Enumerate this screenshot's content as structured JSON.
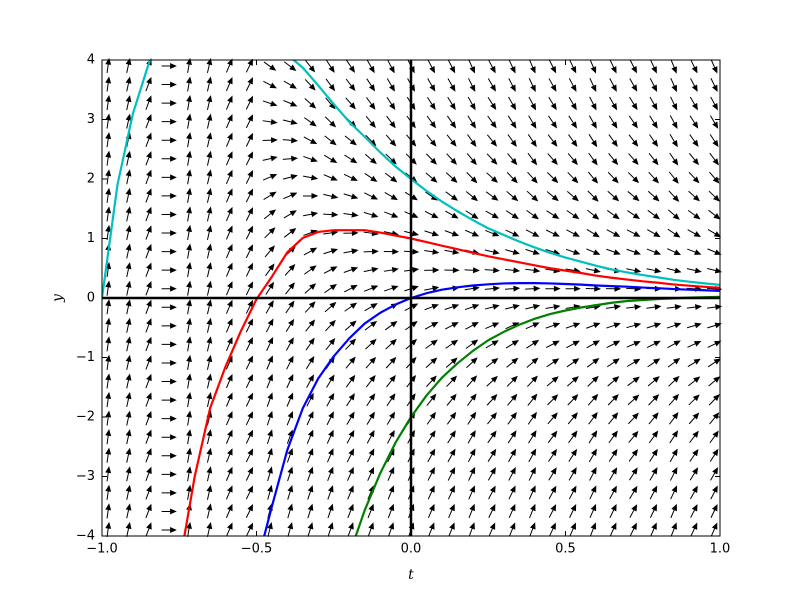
{
  "chart_data": {
    "type": "line",
    "xlabel": "t",
    "ylabel": "y",
    "x": [
      -1,
      -0.95,
      -0.9,
      -0.85,
      -0.8,
      -0.75,
      -0.7,
      -0.65,
      -0.6,
      -0.55,
      -0.5,
      -0.45,
      -0.4,
      -0.35,
      -0.3,
      -0.25,
      -0.2,
      -0.15,
      -0.1,
      -0.05,
      0,
      0.05,
      0.1,
      0.15,
      0.2,
      0.25,
      0.3,
      0.35,
      0.4,
      0.45,
      0.5,
      0.55,
      0.6,
      0.65,
      0.7,
      0.75,
      0.8,
      0.85,
      0.9,
      0.95,
      1
    ],
    "series": [
      {
        "color": "#00bfbf",
        "values": [
          0,
          1.9,
          3.1,
          3.92,
          4.6,
          null,
          null,
          null,
          null,
          null,
          null,
          4.5,
          4.09,
          3.87,
          3.57,
          3.26,
          2.96,
          2.71,
          2.45,
          2.21,
          2,
          1.8,
          1.62,
          1.46,
          1.31,
          1.17,
          1.06,
          0.95,
          0.85,
          0.76,
          0.68,
          0.61,
          0.54,
          0.48,
          0.43,
          0.385,
          0.347,
          0.306,
          0.274,
          0.246,
          0.22
        ]
      },
      {
        "color": "#ff0000",
        "values": [
          null,
          null,
          null,
          null,
          null,
          -4.5,
          -3.0,
          -1.85,
          -1.15,
          -0.55,
          -0.02,
          0.36,
          0.77,
          1.01,
          1.11,
          1.14,
          1.14,
          1.14,
          1.1,
          1.05,
          1,
          0.94,
          0.88,
          0.82,
          0.76,
          0.7,
          0.65,
          0.6,
          0.55,
          0.5,
          0.46,
          0.42,
          0.375,
          0.34,
          0.31,
          0.28,
          0.256,
          0.228,
          0.207,
          0.188,
          0.17
        ]
      },
      {
        "color": "#0000ff",
        "values": [
          null,
          null,
          null,
          null,
          null,
          null,
          null,
          null,
          null,
          null,
          -4.5,
          -3.5,
          -2.55,
          -1.85,
          -1.35,
          -0.98,
          -0.68,
          -0.43,
          -0.25,
          -0.11,
          0,
          0.08,
          0.14,
          0.18,
          0.21,
          0.23,
          0.245,
          0.25,
          0.25,
          0.245,
          0.235,
          0.225,
          0.21,
          0.2,
          0.19,
          0.175,
          0.165,
          0.15,
          0.14,
          0.13,
          0.12
        ]
      },
      {
        "color": "#008000",
        "values": [
          null,
          null,
          null,
          null,
          null,
          null,
          null,
          null,
          null,
          null,
          null,
          null,
          null,
          null,
          null,
          null,
          -4.32,
          -3.57,
          -2.95,
          -2.43,
          -2,
          -1.64,
          -1.34,
          -1.1,
          -0.89,
          -0.71,
          -0.57,
          -0.45,
          -0.35,
          -0.27,
          -0.21,
          -0.16,
          -0.12,
          -0.08,
          -0.05,
          -0.035,
          -0.017,
          -0.006,
          0.006,
          0.014,
          0.02
        ]
      }
    ],
    "xlim": [
      -1,
      1
    ],
    "xticks": [
      {
        "value": -1,
        "label": "−1.0"
      },
      {
        "value": -0.5,
        "label": "−0.5"
      },
      {
        "value": 0,
        "label": "0.0"
      },
      0.5,
      {
        "value": 1,
        "label": "1.0"
      }
    ],
    "ylim": [
      -4,
      4
    ],
    "yticks": [
      {
        "value": -4,
        "label": "−4"
      },
      {
        "value": -3,
        "label": "−3"
      },
      {
        "value": -2,
        "label": "−2"
      },
      {
        "value": -1,
        "label": "−1"
      },
      0,
      1,
      2,
      3,
      4
    ],
    "grid": false
  }
}
